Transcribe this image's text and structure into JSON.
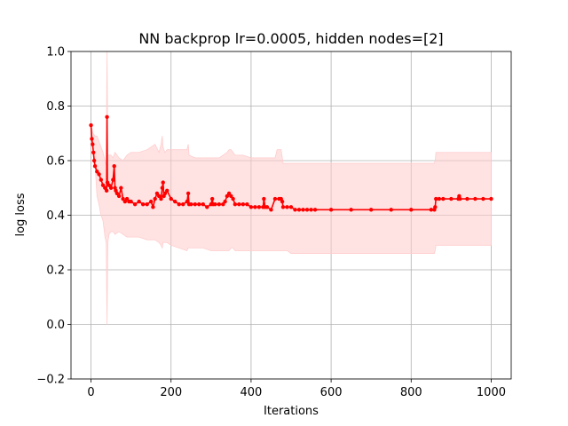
{
  "chart_data": {
    "type": "line",
    "title": "NN backprop lr=0.0005, hidden nodes=[2]",
    "xlabel": "Iterations",
    "ylabel": "log loss",
    "xlim": [
      -50,
      1050
    ],
    "ylim": [
      -0.2,
      1.0
    ],
    "xticks": [
      0,
      200,
      400,
      600,
      800,
      1000
    ],
    "yticks": [
      -0.2,
      0.0,
      0.2,
      0.4,
      0.6,
      0.8,
      1.0
    ],
    "xtick_labels": [
      "0",
      "200",
      "400",
      "600",
      "800",
      "1000"
    ],
    "ytick_labels": [
      "−0.2",
      "0.0",
      "0.2",
      "0.4",
      "0.6",
      "0.8",
      "1.0"
    ],
    "grid": true,
    "series": [
      {
        "type": "line-markers",
        "color": "#ff0000",
        "x": [
          0,
          2,
          4,
          6,
          8,
          10,
          15,
          20,
          25,
          30,
          35,
          39,
          40,
          41,
          45,
          50,
          55,
          58,
          60,
          62,
          65,
          70,
          75,
          80,
          85,
          90,
          95,
          100,
          110,
          120,
          130,
          140,
          150,
          155,
          160,
          165,
          170,
          175,
          178,
          180,
          182,
          185,
          190,
          200,
          210,
          220,
          230,
          240,
          243,
          245,
          250,
          260,
          270,
          280,
          290,
          300,
          303,
          305,
          310,
          320,
          330,
          335,
          340,
          345,
          350,
          355,
          360,
          370,
          380,
          390,
          400,
          410,
          420,
          430,
          432,
          435,
          440,
          450,
          460,
          470,
          475,
          478,
          480,
          490,
          500,
          510,
          520,
          530,
          540,
          550,
          560,
          600,
          650,
          700,
          750,
          800,
          850,
          858,
          860,
          862,
          870,
          880,
          900,
          918,
          920,
          922,
          940,
          960,
          980,
          1000
        ],
        "y": [
          0.73,
          0.68,
          0.66,
          0.63,
          0.6,
          0.58,
          0.56,
          0.55,
          0.53,
          0.51,
          0.5,
          0.49,
          0.76,
          0.52,
          0.51,
          0.5,
          0.53,
          0.58,
          0.5,
          0.49,
          0.48,
          0.47,
          0.5,
          0.46,
          0.45,
          0.46,
          0.45,
          0.45,
          0.44,
          0.45,
          0.44,
          0.44,
          0.45,
          0.43,
          0.46,
          0.48,
          0.47,
          0.46,
          0.5,
          0.52,
          0.47,
          0.48,
          0.49,
          0.46,
          0.45,
          0.44,
          0.44,
          0.45,
          0.48,
          0.44,
          0.44,
          0.44,
          0.44,
          0.44,
          0.43,
          0.44,
          0.46,
          0.44,
          0.44,
          0.44,
          0.44,
          0.45,
          0.47,
          0.48,
          0.47,
          0.46,
          0.44,
          0.44,
          0.44,
          0.44,
          0.43,
          0.43,
          0.43,
          0.43,
          0.46,
          0.43,
          0.43,
          0.42,
          0.46,
          0.46,
          0.46,
          0.45,
          0.43,
          0.43,
          0.43,
          0.42,
          0.42,
          0.42,
          0.42,
          0.42,
          0.42,
          0.42,
          0.42,
          0.42,
          0.42,
          0.42,
          0.42,
          0.42,
          0.43,
          0.46,
          0.46,
          0.46,
          0.46,
          0.46,
          0.47,
          0.46,
          0.46,
          0.46,
          0.46,
          0.46
        ]
      },
      {
        "type": "band",
        "color": "#ffcccc",
        "x": [
          0,
          5,
          10,
          15,
          20,
          25,
          30,
          35,
          38,
          40,
          42,
          45,
          50,
          55,
          60,
          70,
          80,
          90,
          100,
          120,
          140,
          160,
          170,
          175,
          178,
          180,
          182,
          185,
          190,
          200,
          220,
          240,
          243,
          245,
          260,
          280,
          300,
          320,
          340,
          345,
          350,
          355,
          360,
          380,
          400,
          420,
          430,
          440,
          460,
          465,
          470,
          475,
          480,
          490,
          500,
          550,
          600,
          700,
          800,
          858,
          860,
          862,
          900,
          950,
          1000
        ],
        "upper": [
          0.73,
          0.7,
          0.69,
          0.69,
          0.67,
          0.65,
          0.63,
          0.6,
          0.58,
          1.0,
          0.62,
          0.62,
          0.62,
          0.61,
          0.63,
          0.61,
          0.6,
          0.62,
          0.63,
          0.63,
          0.64,
          0.66,
          0.63,
          0.66,
          0.69,
          0.65,
          0.64,
          0.63,
          0.64,
          0.64,
          0.64,
          0.64,
          0.66,
          0.62,
          0.61,
          0.61,
          0.61,
          0.61,
          0.63,
          0.64,
          0.64,
          0.63,
          0.62,
          0.62,
          0.61,
          0.61,
          0.61,
          0.61,
          0.61,
          0.64,
          0.64,
          0.64,
          0.59,
          0.59,
          0.59,
          0.59,
          0.59,
          0.59,
          0.59,
          0.59,
          0.6,
          0.63,
          0.63,
          0.63,
          0.63
        ],
        "lower": [
          0.73,
          0.66,
          0.59,
          0.47,
          0.44,
          0.4,
          0.38,
          0.32,
          0.3,
          0.0,
          0.3,
          0.33,
          0.34,
          0.34,
          0.33,
          0.34,
          0.33,
          0.32,
          0.32,
          0.32,
          0.31,
          0.31,
          0.3,
          0.29,
          0.28,
          0.3,
          0.3,
          0.3,
          0.3,
          0.29,
          0.28,
          0.27,
          0.28,
          0.28,
          0.28,
          0.28,
          0.27,
          0.27,
          0.27,
          0.27,
          0.28,
          0.28,
          0.27,
          0.27,
          0.27,
          0.27,
          0.27,
          0.27,
          0.27,
          0.27,
          0.27,
          0.27,
          0.27,
          0.27,
          0.26,
          0.26,
          0.26,
          0.26,
          0.26,
          0.26,
          0.27,
          0.29,
          0.29,
          0.29,
          0.29
        ]
      }
    ]
  }
}
